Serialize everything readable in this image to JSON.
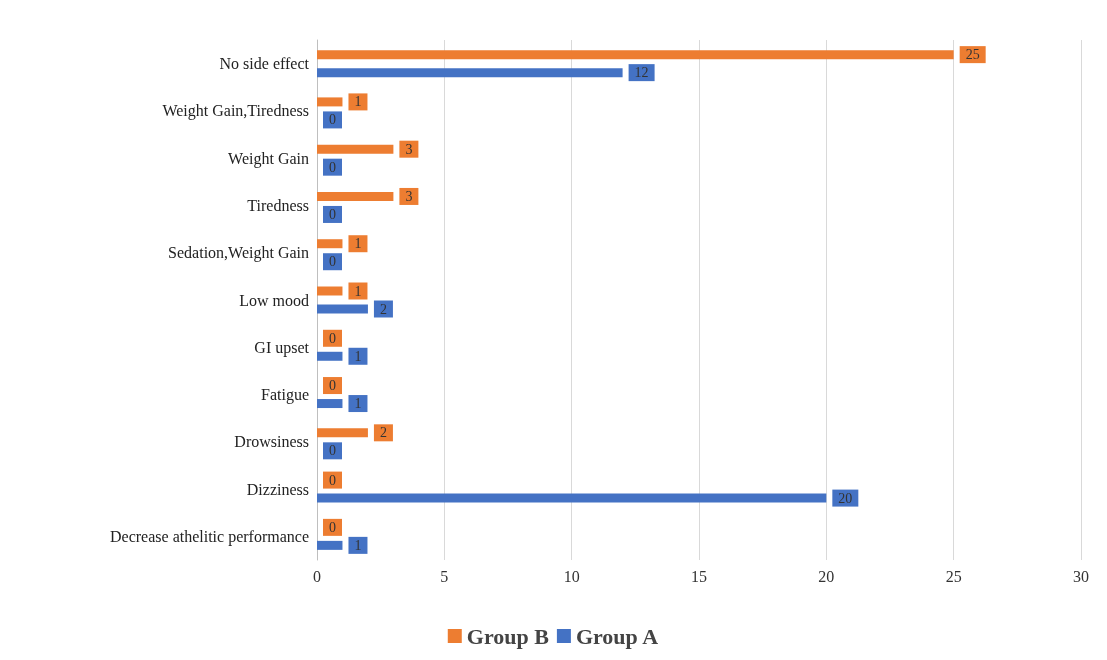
{
  "chart_data": {
    "type": "bar",
    "orientation": "horizontal",
    "categories": [
      "No side effect",
      "Weight Gain,Tiredness",
      "Weight Gain",
      "Tiredness",
      "Sedation,Weight Gain",
      "Low mood",
      "GI upset",
      "Fatigue",
      "Drowsiness",
      "Dizziness",
      "Decrease athelitic performance"
    ],
    "series": [
      {
        "name": "Group B",
        "color": "#ed7d31",
        "values": [
          25,
          1,
          3,
          3,
          1,
          1,
          0,
          0,
          2,
          0,
          0
        ]
      },
      {
        "name": "Group A",
        "color": "#4472c4",
        "values": [
          12,
          0,
          0,
          0,
          0,
          2,
          1,
          1,
          0,
          20,
          1
        ]
      }
    ],
    "xlim": [
      0,
      30
    ],
    "xticks": [
      0,
      5,
      10,
      15,
      20,
      25,
      30
    ],
    "grid": "x",
    "legend": "bottom",
    "data_labels": true
  }
}
